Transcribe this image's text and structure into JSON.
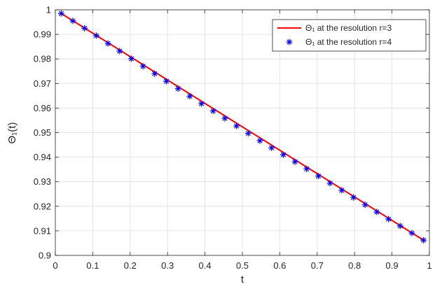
{
  "chart_data": {
    "type": "line",
    "xlabel": "t",
    "ylabel": "Θ₁(t)",
    "xlim": [
      0,
      1
    ],
    "ylim": [
      0.9,
      1.0
    ],
    "xticks": [
      "0",
      "0.1",
      "0.2",
      "0.3",
      "0.4",
      "0.5",
      "0.6",
      "0.7",
      "0.8",
      "0.9",
      "1"
    ],
    "yticks": [
      "0.9",
      "0.91",
      "0.92",
      "0.93",
      "0.94",
      "0.95",
      "0.96",
      "0.97",
      "0.98",
      "0.99",
      "1"
    ],
    "grid": true,
    "legend_position": "top-right",
    "series": [
      {
        "name": "Θ₁ at the resolution r=3",
        "style": "line",
        "color": "#ff0000",
        "x": [
          0.015625,
          0.984375
        ],
        "y": [
          0.9985,
          0.9062
        ]
      },
      {
        "name": "Θ₁ at the resolution r=4",
        "style": "markers",
        "marker": "asterisk",
        "color": "#0000ff",
        "x": [
          0.015625,
          0.046875,
          0.078125,
          0.109375,
          0.140625,
          0.171875,
          0.203125,
          0.234375,
          0.265625,
          0.296875,
          0.328125,
          0.359375,
          0.390625,
          0.421875,
          0.453125,
          0.484375,
          0.515625,
          0.546875,
          0.578125,
          0.609375,
          0.640625,
          0.671875,
          0.703125,
          0.734375,
          0.765625,
          0.796875,
          0.828125,
          0.859375,
          0.890625,
          0.921875,
          0.953125,
          0.984375
        ],
        "y": [
          0.9985,
          0.9955,
          0.9925,
          0.9895,
          0.9863,
          0.9832,
          0.9801,
          0.977,
          0.974,
          0.9709,
          0.9679,
          0.9648,
          0.9618,
          0.9588,
          0.9558,
          0.9527,
          0.9497,
          0.9467,
          0.9438,
          0.941,
          0.9381,
          0.9352,
          0.9323,
          0.9294,
          0.9265,
          0.9236,
          0.9206,
          0.9177,
          0.9148,
          0.912,
          0.9091,
          0.9062
        ]
      }
    ]
  }
}
